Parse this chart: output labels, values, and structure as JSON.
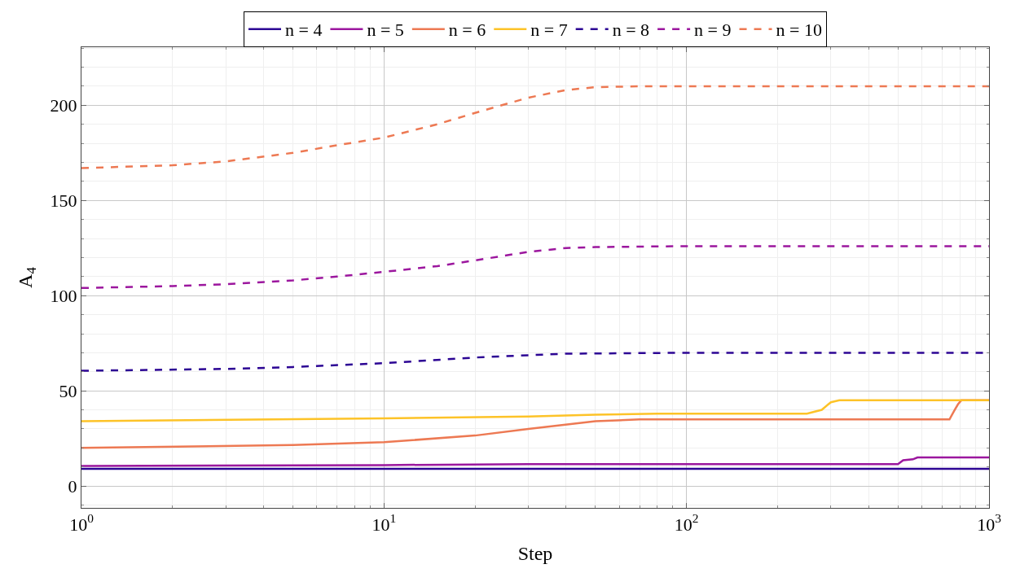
{
  "chart_data": {
    "type": "line",
    "xlabel": "Step",
    "ylabel": "A$_{4}$",
    "log": "x",
    "grid": true,
    "legend": "top",
    "marker": "none",
    "xlim": [
      1,
      1000
    ],
    "xticks": [
      {
        "value": 1,
        "label": "10$^{0}$"
      },
      {
        "value": 10,
        "label": "10$^{1}$"
      },
      {
        "value": 100,
        "label": "10$^{2}$"
      },
      {
        "value": 1000,
        "label": "10$^{3}$"
      }
    ],
    "ylim": [
      -11.5,
      230.5
    ],
    "yticks": [
      0,
      50,
      100,
      150,
      200
    ],
    "series": [
      {
        "name": "n = 4",
        "color": "#2c0594",
        "line_style": "solid",
        "x": [
          1,
          10,
          100,
          1000
        ],
        "values": [
          9,
          9,
          9,
          9
        ]
      },
      {
        "name": "n = 5",
        "color": "#9c179e",
        "line_style": "solid",
        "x": [
          1,
          10,
          30,
          100,
          500,
          520,
          560,
          580,
          1000
        ],
        "values": [
          10.5,
          11,
          11.5,
          11.5,
          11.5,
          13.5,
          14,
          15,
          15
        ]
      },
      {
        "name": "n = 6",
        "color": "#ed7953",
        "line_style": "solid",
        "x": [
          1,
          5,
          10,
          20,
          30,
          50,
          70,
          100,
          740,
          770,
          790,
          810,
          1000
        ],
        "values": [
          20,
          21.5,
          23,
          26.5,
          30,
          34,
          35,
          35,
          35,
          40,
          43,
          45,
          45
        ]
      },
      {
        "name": "n = 7",
        "color": "#fdc328",
        "line_style": "solid",
        "x": [
          1,
          10,
          30,
          50,
          80,
          250,
          280,
          300,
          320,
          1000
        ],
        "values": [
          34,
          35.5,
          36.5,
          37.5,
          38,
          38,
          40,
          44,
          45,
          45
        ]
      },
      {
        "name": "n = 8",
        "color": "#2c0594",
        "line_style": "dashed",
        "x": [
          1,
          3,
          5,
          10,
          20,
          40,
          100,
          1000
        ],
        "values": [
          60.5,
          61.5,
          62.5,
          64.5,
          67.5,
          69.5,
          70,
          70
        ]
      },
      {
        "name": "n = 9",
        "color": "#9c179e",
        "line_style": "dashed",
        "x": [
          1,
          2,
          3,
          5,
          7,
          10,
          15,
          20,
          30,
          40,
          50,
          100,
          1000
        ],
        "values": [
          104,
          105,
          106,
          108,
          110,
          112.5,
          115.5,
          118.5,
          123,
          125,
          125.5,
          126,
          126
        ]
      },
      {
        "name": "n = 10",
        "color": "#ed7953",
        "line_style": "dashed",
        "x": [
          1,
          2,
          3,
          5,
          7,
          10,
          15,
          20,
          30,
          40,
          50,
          70,
          100,
          1000
        ],
        "values": [
          167,
          168.5,
          170.5,
          175,
          179,
          183,
          190,
          196,
          204,
          208,
          209.5,
          210,
          210,
          210
        ]
      }
    ]
  }
}
